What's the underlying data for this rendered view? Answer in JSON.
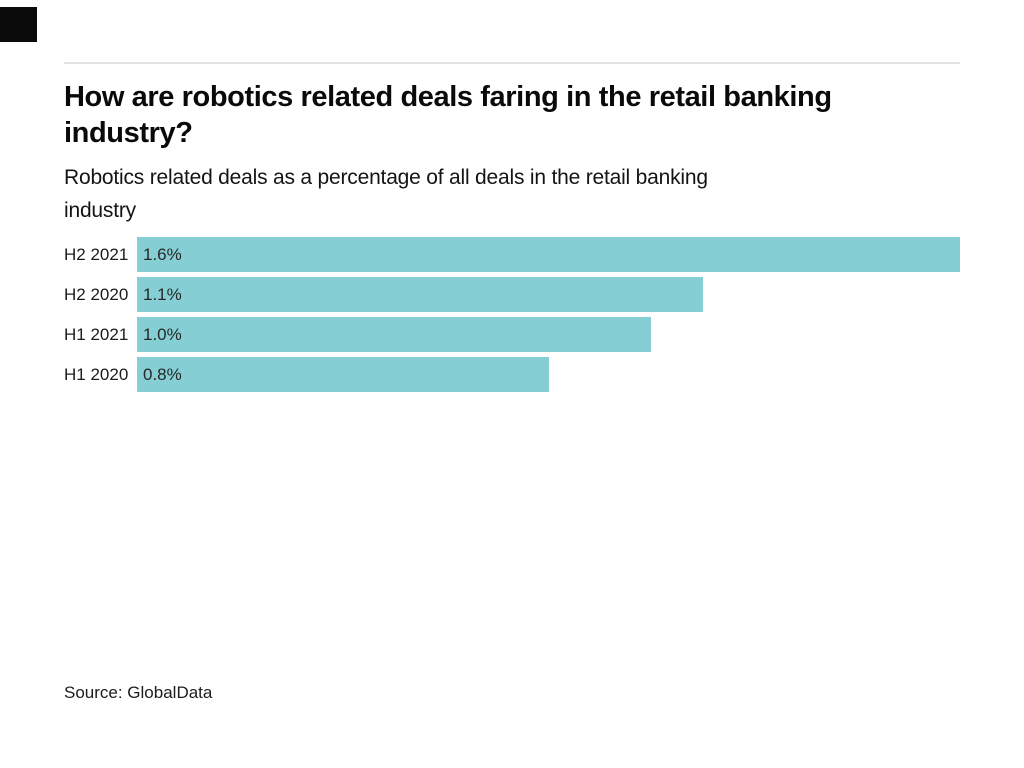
{
  "brand": {
    "color": "#0b0b0b"
  },
  "header": {
    "title_lines": [
      "How are robotics related deals faring in the retail banking",
      "industry?"
    ],
    "subtitle_lines": [
      "Robotics related deals as a percentage of all deals in the retail banking",
      "industry"
    ]
  },
  "chart_data": {
    "type": "bar",
    "orientation": "horizontal",
    "title": "How are robotics related deals faring in the retail banking industry?",
    "subtitle": "Robotics related deals as a percentage of all deals in the retail banking industry",
    "categories": [
      "H2 2021",
      "H2 2020",
      "H1 2021",
      "H1 2020"
    ],
    "values": [
      1.6,
      1.1,
      1.0,
      0.8
    ],
    "value_labels": [
      "1.6%",
      "1.1%",
      "1.0%",
      "0.8%"
    ],
    "xlim": [
      0,
      1.6
    ],
    "bar_color": "#85CFD4",
    "value_text_color": "#262626",
    "grid": false,
    "legend": false
  },
  "footer": {
    "source": "Source: GlobalData"
  }
}
